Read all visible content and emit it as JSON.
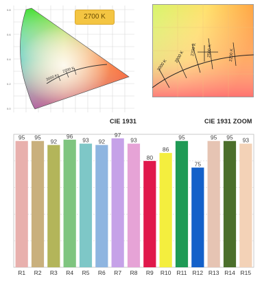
{
  "cie_main": {
    "caption": "CIE 1931",
    "cct_badge": "2700 K",
    "locus_labels": [
      "3000 K",
      "2700 K"
    ]
  },
  "cie_zoom": {
    "caption": "CIE 1931 ZOOM",
    "isotherm_labels": [
      "3000 K",
      "2800 K",
      "2700 K",
      "2500 K",
      "2200 K"
    ]
  },
  "chart_data": {
    "type": "bar",
    "categories": [
      "R1",
      "R2",
      "R3",
      "R4",
      "R5",
      "R6",
      "R7",
      "R8",
      "R9",
      "R10",
      "R11",
      "R12",
      "R13",
      "R14",
      "R15"
    ],
    "values": [
      95,
      95,
      92,
      96,
      93,
      92,
      97,
      93,
      80,
      86,
      95,
      75,
      95,
      95,
      93
    ],
    "colors": [
      "#e8b0ad",
      "#c9b07d",
      "#b3b55a",
      "#7fc57f",
      "#7ec7c7",
      "#8eb5e0",
      "#c6a2e8",
      "#e6a3d6",
      "#e0184b",
      "#f4ee3e",
      "#1f9a55",
      "#1360c9",
      "#e6c4b3",
      "#4b6f2b",
      "#f3d2b7"
    ],
    "ylim": [
      0,
      100
    ],
    "grid": true
  }
}
